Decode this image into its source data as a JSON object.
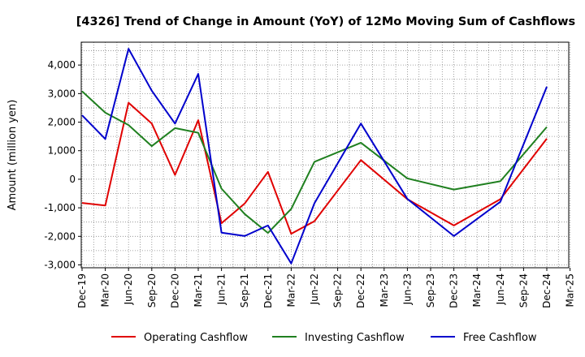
{
  "chart_data": {
    "type": "line",
    "title": "[4326]  Trend of Change in Amount (YoY) of 12Mo Moving Sum of Cashflows",
    "xlabel": "",
    "ylabel": "Amount (million yen)",
    "ylim": [
      -3100,
      4800
    ],
    "yticks": [
      -3000,
      -2000,
      -1000,
      0,
      1000,
      2000,
      3000,
      4000
    ],
    "ytick_labels": [
      "-3,000",
      "-2,000",
      "-1,000",
      "0",
      "1,000",
      "2,000",
      "3,000",
      "4,000"
    ],
    "categories": [
      "Dec-19",
      "Mar-20",
      "Jun-20",
      "Sep-20",
      "Dec-20",
      "Mar-21",
      "Jun-21",
      "Sep-21",
      "Dec-21",
      "Mar-22",
      "Jun-22",
      "Sep-22",
      "Dec-22",
      "Mar-23",
      "Jun-23",
      "Sep-23",
      "Dec-23",
      "Mar-24",
      "Jun-24",
      "Sep-24",
      "Dec-24",
      "Mar-25"
    ],
    "grid": true,
    "legend_position": "bottom",
    "series": [
      {
        "name": "Operating Cashflow",
        "color": "#e00000",
        "values": [
          -830,
          -920,
          2680,
          1950,
          150,
          2070,
          -1540,
          -850,
          260,
          -1910,
          -1470,
          null,
          670,
          null,
          -700,
          null,
          -1620,
          null,
          -700,
          null,
          1420,
          null
        ]
      },
      {
        "name": "Investing Cashflow",
        "color": "#208020",
        "values": [
          3080,
          2330,
          1900,
          1160,
          1790,
          1630,
          -330,
          -1220,
          -1880,
          -1040,
          610,
          null,
          1280,
          null,
          30,
          null,
          -360,
          null,
          -70,
          null,
          1830,
          null
        ]
      },
      {
        "name": "Free Cashflow",
        "color": "#0000cc",
        "values": [
          2240,
          1410,
          4570,
          3100,
          1950,
          3690,
          -1870,
          -1990,
          -1620,
          -2950,
          -840,
          null,
          1950,
          null,
          -690,
          null,
          -1990,
          null,
          -790,
          null,
          3240,
          null
        ]
      }
    ]
  }
}
